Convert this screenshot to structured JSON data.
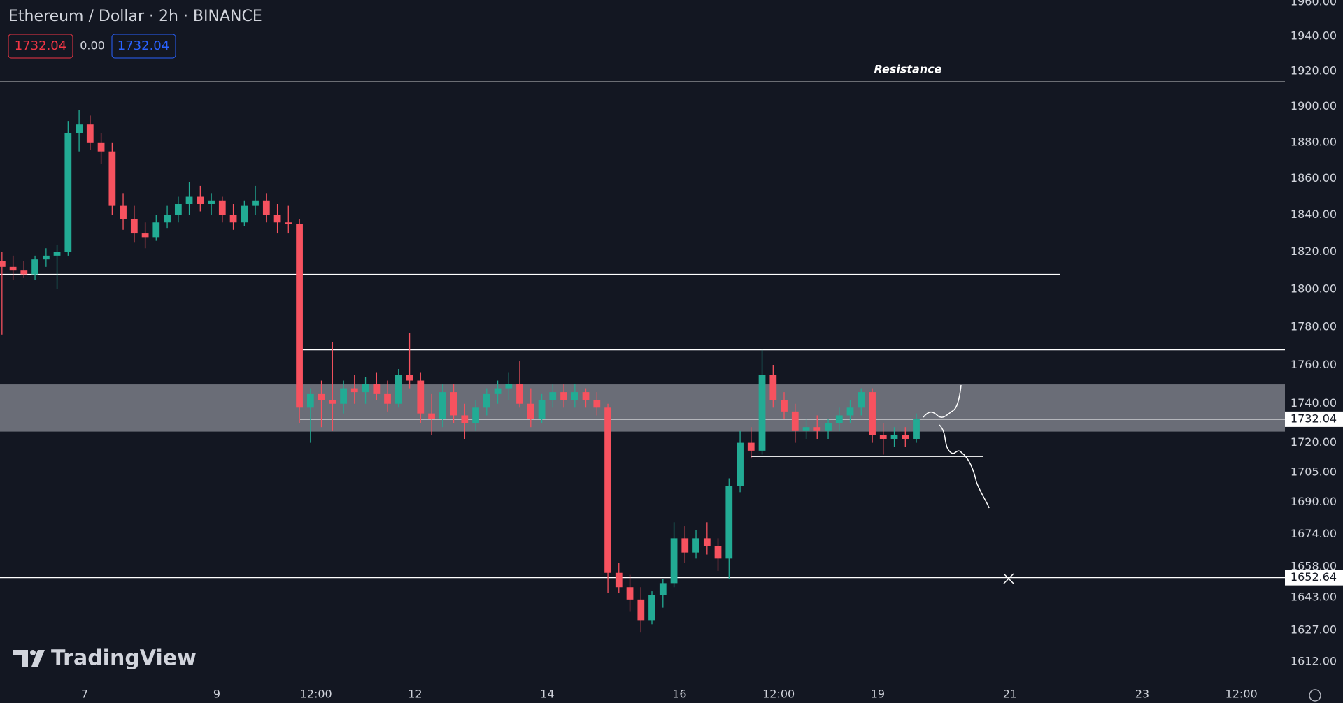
{
  "chart_data": {
    "type": "candlestick",
    "title": "Ethereum / Dollar · 2h · BINANCE",
    "quote": {
      "sell": "1732.04",
      "change": "0.00",
      "buy": "1732.04"
    },
    "brand": "TradingView",
    "up_color": "#22ab94",
    "down_color": "#f7525f",
    "log": true,
    "grid": false,
    "xlim": [
      5.72,
      25.16
    ],
    "xticks": [
      7,
      9,
      {
        "value": 10.5,
        "label": "12:00"
      },
      12,
      14,
      16,
      {
        "value": 17.5,
        "label": "12:00"
      },
      19,
      21,
      23,
      {
        "value": 24.5,
        "label": "12:00"
      }
    ],
    "ylim": [
      1603,
      1961
    ],
    "yticks": [
      {
        "value": 1960,
        "label": "1960.00"
      },
      {
        "value": 1940,
        "label": "1940.00"
      },
      {
        "value": 1920,
        "label": "1920.00"
      },
      {
        "value": 1900,
        "label": "1900.00"
      },
      {
        "value": 1880,
        "label": "1880.00"
      },
      {
        "value": 1860,
        "label": "1860.00"
      },
      {
        "value": 1840,
        "label": "1840.00"
      },
      {
        "value": 1820,
        "label": "1820.00"
      },
      {
        "value": 1800,
        "label": "1800.00"
      },
      {
        "value": 1780,
        "label": "1780.00"
      },
      {
        "value": 1760,
        "label": "1760.00"
      },
      {
        "value": 1740,
        "label": "1740.00"
      },
      {
        "value": 1720,
        "label": "1720.00"
      },
      {
        "value": 1705,
        "label": "1705.00"
      },
      {
        "value": 1690,
        "label": "1690.00"
      },
      {
        "value": 1674,
        "label": "1674.00"
      },
      {
        "value": 1658,
        "label": "1658.00"
      },
      {
        "value": 1643,
        "label": "1643.00"
      },
      {
        "value": 1627,
        "label": "1627.00"
      },
      {
        "value": 1612,
        "label": "1612.00"
      }
    ],
    "resistance": {
      "value": 1914,
      "label": "Resistance"
    },
    "lines": [
      1808,
      1768,
      1713
    ],
    "zone": [
      1725.7,
      1750
    ],
    "price_lines": [
      {
        "value": 1732.04,
        "label": "1732.04"
      },
      {
        "value": 1652.64,
        "label": "1652.64"
      }
    ],
    "candles": [
      [
        5.75,
        1815,
        1820,
        1776,
        1812
      ],
      [
        5.917,
        1812,
        1818,
        1805,
        1810
      ],
      [
        6.083,
        1810,
        1815,
        1806,
        1808
      ],
      [
        6.25,
        1808,
        1818,
        1805,
        1816
      ],
      [
        6.417,
        1816,
        1822,
        1812,
        1818
      ],
      [
        6.583,
        1818,
        1824,
        1800,
        1820
      ],
      [
        6.75,
        1820,
        1892,
        1818,
        1885
      ],
      [
        6.917,
        1885,
        1898,
        1875,
        1890
      ],
      [
        7.083,
        1890,
        1895,
        1876,
        1880
      ],
      [
        7.25,
        1880,
        1885,
        1868,
        1875
      ],
      [
        7.417,
        1875,
        1880,
        1840,
        1845
      ],
      [
        7.583,
        1845,
        1852,
        1832,
        1838
      ],
      [
        7.75,
        1838,
        1845,
        1825,
        1830
      ],
      [
        7.917,
        1830,
        1836,
        1822,
        1828
      ],
      [
        8.083,
        1828,
        1840,
        1826,
        1836
      ],
      [
        8.25,
        1836,
        1845,
        1833,
        1840
      ],
      [
        8.417,
        1840,
        1850,
        1836,
        1846
      ],
      [
        8.583,
        1846,
        1858,
        1840,
        1850
      ],
      [
        8.75,
        1850,
        1856,
        1842,
        1846
      ],
      [
        8.917,
        1846,
        1852,
        1840,
        1848
      ],
      [
        9.083,
        1848,
        1850,
        1836,
        1840
      ],
      [
        9.25,
        1840,
        1846,
        1832,
        1836
      ],
      [
        9.417,
        1836,
        1848,
        1834,
        1845
      ],
      [
        9.583,
        1845,
        1856,
        1840,
        1848
      ],
      [
        9.75,
        1848,
        1852,
        1836,
        1840
      ],
      [
        9.917,
        1840,
        1846,
        1830,
        1836
      ],
      [
        10.083,
        1836,
        1845,
        1830,
        1835
      ],
      [
        10.25,
        1835,
        1838,
        1730,
        1738
      ],
      [
        10.417,
        1738,
        1748,
        1720,
        1745
      ],
      [
        10.583,
        1745,
        1752,
        1728,
        1742
      ],
      [
        10.75,
        1742,
        1772,
        1726,
        1740
      ],
      [
        10.917,
        1740,
        1752,
        1735,
        1748
      ],
      [
        11.083,
        1748,
        1755,
        1740,
        1746
      ],
      [
        11.25,
        1746,
        1754,
        1740,
        1750
      ],
      [
        11.417,
        1750,
        1756,
        1742,
        1745
      ],
      [
        11.583,
        1745,
        1752,
        1736,
        1740
      ],
      [
        11.75,
        1740,
        1758,
        1738,
        1755
      ],
      [
        11.917,
        1755,
        1777,
        1748,
        1752
      ],
      [
        12.083,
        1752,
        1756,
        1730,
        1735
      ],
      [
        12.25,
        1735,
        1745,
        1724,
        1732
      ],
      [
        12.417,
        1732,
        1750,
        1728,
        1746
      ],
      [
        12.583,
        1746,
        1750,
        1730,
        1734
      ],
      [
        12.75,
        1734,
        1740,
        1722,
        1730
      ],
      [
        12.917,
        1730,
        1742,
        1726,
        1738
      ],
      [
        13.083,
        1738,
        1748,
        1734,
        1745
      ],
      [
        13.25,
        1745,
        1752,
        1740,
        1748
      ],
      [
        13.417,
        1748,
        1756,
        1742,
        1750
      ],
      [
        13.583,
        1750,
        1762,
        1738,
        1740
      ],
      [
        13.75,
        1740,
        1748,
        1728,
        1732
      ],
      [
        13.917,
        1732,
        1745,
        1730,
        1742
      ],
      [
        14.083,
        1742,
        1750,
        1738,
        1746
      ],
      [
        14.25,
        1746,
        1750,
        1738,
        1742
      ],
      [
        14.417,
        1742,
        1750,
        1738,
        1746
      ],
      [
        14.583,
        1746,
        1748,
        1738,
        1742
      ],
      [
        14.75,
        1742,
        1746,
        1734,
        1738
      ],
      [
        14.917,
        1738,
        1740,
        1645,
        1655
      ],
      [
        15.083,
        1655,
        1660,
        1645,
        1648
      ],
      [
        15.25,
        1648,
        1654,
        1636,
        1642
      ],
      [
        15.417,
        1642,
        1648,
        1626,
        1632
      ],
      [
        15.583,
        1632,
        1646,
        1630,
        1644
      ],
      [
        15.75,
        1644,
        1652,
        1638,
        1650
      ],
      [
        15.917,
        1650,
        1680,
        1648,
        1672
      ],
      [
        16.083,
        1672,
        1678,
        1660,
        1665
      ],
      [
        16.25,
        1665,
        1676,
        1662,
        1672
      ],
      [
        16.417,
        1672,
        1680,
        1664,
        1668
      ],
      [
        16.583,
        1668,
        1672,
        1656,
        1662
      ],
      [
        16.75,
        1662,
        1702,
        1652,
        1698
      ],
      [
        16.917,
        1698,
        1726,
        1695,
        1720
      ],
      [
        17.083,
        1720,
        1728,
        1712,
        1716
      ],
      [
        17.25,
        1716,
        1768,
        1714,
        1755
      ],
      [
        17.417,
        1755,
        1760,
        1738,
        1742
      ],
      [
        17.583,
        1742,
        1746,
        1732,
        1736
      ],
      [
        17.75,
        1736,
        1740,
        1720,
        1726
      ],
      [
        17.917,
        1726,
        1732,
        1722,
        1728
      ],
      [
        18.083,
        1728,
        1734,
        1722,
        1726
      ],
      [
        18.25,
        1726,
        1732,
        1722,
        1730
      ],
      [
        18.417,
        1730,
        1738,
        1726,
        1734
      ],
      [
        18.583,
        1734,
        1742,
        1730,
        1738
      ],
      [
        18.75,
        1738,
        1748,
        1734,
        1746
      ],
      [
        18.917,
        1746,
        1748,
        1720,
        1724
      ],
      [
        19.083,
        1724,
        1730,
        1714,
        1722
      ],
      [
        19.25,
        1722,
        1728,
        1718,
        1724
      ],
      [
        19.417,
        1724,
        1728,
        1718,
        1722
      ],
      [
        19.583,
        1722,
        1735,
        1720,
        1732.04
      ]
    ]
  }
}
